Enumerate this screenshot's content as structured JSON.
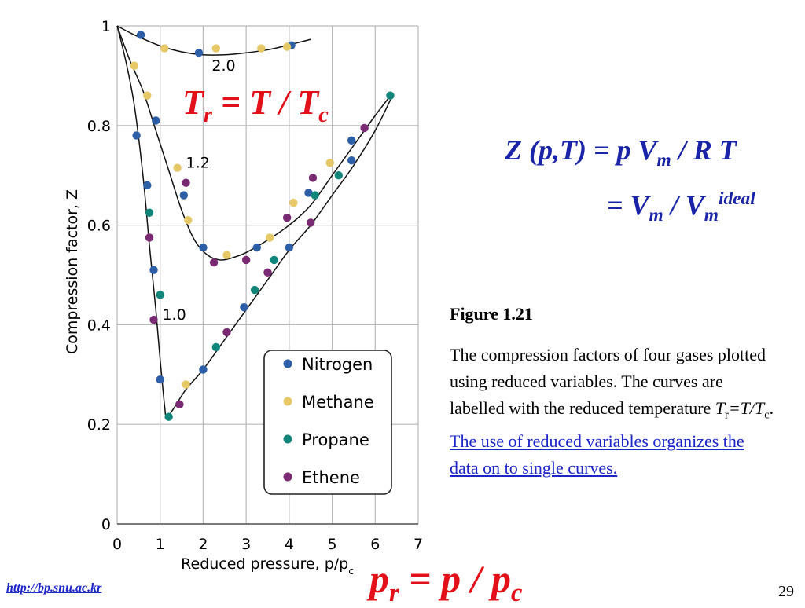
{
  "slide": {
    "tr_equation": {
      "a": "T",
      "a_sub": "r",
      "b": " = T / T",
      "b_sub": "c"
    },
    "pr_equation": {
      "a": "p",
      "a_sub": "r",
      "b": " = p / p",
      "b_sub": "c"
    },
    "z_line1": {
      "pre": "Z (",
      "p": "p",
      "mid": ",",
      "T": "T",
      "eq": ") = p V",
      "sub": "m",
      "post": " / R T"
    },
    "z_line2": {
      "pre": "= V",
      "sub1": "m",
      "mid": " / V",
      "sub2": "m",
      "sup": "ideal"
    },
    "figure_label": "Figure 1.21",
    "caption": {
      "text1": "The compression factors of four gases plotted using reduced variables.  The curves are labelled with the reduced temperature ",
      "T": "T",
      "r": "r",
      "eq": "=T/T",
      "c": "c",
      "dot": ".  ",
      "link": "The use of reduced variables organizes the data on to single curves."
    },
    "url": "http://bp.snu.ac.kr",
    "page_number": "29"
  },
  "colors": {
    "nitrogen": "#2d5ea8",
    "methane": "#e6c866",
    "propane": "#10857a",
    "ethene": "#7a2a72",
    "red": "#e3101a",
    "blue": "#1a24a8"
  },
  "chart_data": {
    "type": "scatter",
    "xlabel": "Reduced pressure, p/p",
    "xlabel_sub": "c",
    "ylabel": "Compression factor, Z",
    "xlim": [
      0,
      7
    ],
    "ylim": [
      0,
      1
    ],
    "x_ticks": [
      0,
      1,
      2,
      3,
      4,
      5,
      6,
      7
    ],
    "y_ticks": [
      {
        "v": 0,
        "label": "0"
      },
      {
        "v": 0.2,
        "label": "0.2"
      },
      {
        "v": 0.4,
        "label": "0.4"
      },
      {
        "v": 0.6,
        "label": "0.6"
      },
      {
        "v": 0.8,
        "label": "0.8"
      },
      {
        "v": 1,
        "label": "1"
      }
    ],
    "grid": true,
    "curve_labels": [
      {
        "text": "2.0",
        "x": 2.2,
        "y": 0.91
      },
      {
        "text": "1.2",
        "x": 1.6,
        "y": 0.715
      },
      {
        "text": "1.0",
        "x": 1.05,
        "y": 0.41
      }
    ],
    "curves": [
      {
        "Tr": "2.0",
        "points": [
          [
            0,
            1
          ],
          [
            0.4,
            0.982
          ],
          [
            1.0,
            0.96
          ],
          [
            1.5,
            0.948
          ],
          [
            2.0,
            0.942
          ],
          [
            2.5,
            0.942
          ],
          [
            3.0,
            0.946
          ],
          [
            3.5,
            0.952
          ],
          [
            4.0,
            0.962
          ],
          [
            4.5,
            0.973
          ]
        ]
      },
      {
        "Tr": "1.2",
        "points": [
          [
            0,
            1
          ],
          [
            0.3,
            0.93
          ],
          [
            0.6,
            0.87
          ],
          [
            0.9,
            0.79
          ],
          [
            1.2,
            0.71
          ],
          [
            1.5,
            0.63
          ],
          [
            1.8,
            0.57
          ],
          [
            2.1,
            0.54
          ],
          [
            2.4,
            0.53
          ],
          [
            2.7,
            0.535
          ],
          [
            3.0,
            0.545
          ],
          [
            3.5,
            0.57
          ],
          [
            4.0,
            0.6
          ],
          [
            4.5,
            0.64
          ],
          [
            5.0,
            0.7
          ],
          [
            5.5,
            0.76
          ],
          [
            6.0,
            0.82
          ],
          [
            6.4,
            0.865
          ]
        ]
      },
      {
        "Tr": "1.0",
        "points": [
          [
            0,
            1
          ],
          [
            0.2,
            0.93
          ],
          [
            0.4,
            0.84
          ],
          [
            0.6,
            0.7
          ],
          [
            0.75,
            0.56
          ],
          [
            0.9,
            0.43
          ],
          [
            1.0,
            0.33
          ],
          [
            1.1,
            0.24
          ],
          [
            1.15,
            0.215
          ],
          [
            1.3,
            0.23
          ],
          [
            1.6,
            0.27
          ],
          [
            2.0,
            0.31
          ],
          [
            2.5,
            0.37
          ],
          [
            3.0,
            0.43
          ],
          [
            3.5,
            0.49
          ],
          [
            4.0,
            0.55
          ],
          [
            4.5,
            0.6
          ],
          [
            5.0,
            0.66
          ],
          [
            5.5,
            0.72
          ],
          [
            6.0,
            0.79
          ],
          [
            6.4,
            0.86
          ]
        ]
      }
    ],
    "legend": {
      "position": "bottom-right",
      "entries": [
        "Nitrogen",
        "Methane",
        "Propane",
        "Ethene"
      ]
    },
    "series": [
      {
        "name": "Nitrogen",
        "color": "#2d5ea8",
        "points": [
          [
            0.55,
            0.982
          ],
          [
            1.9,
            0.946
          ],
          [
            4.05,
            0.961
          ],
          [
            0.9,
            0.81
          ],
          [
            1.55,
            0.66
          ],
          [
            2.0,
            0.555
          ],
          [
            3.25,
            0.555
          ],
          [
            4.0,
            0.555
          ],
          [
            4.45,
            0.665
          ],
          [
            0.45,
            0.78
          ],
          [
            0.7,
            0.68
          ],
          [
            0.85,
            0.51
          ],
          [
            1.0,
            0.29
          ],
          [
            2.0,
            0.31
          ],
          [
            2.95,
            0.435
          ],
          [
            5.45,
            0.77
          ],
          [
            5.45,
            0.73
          ]
        ]
      },
      {
        "Name": "",
        "name": "Methane",
        "color": "#e6c866",
        "points": [
          [
            1.1,
            0.955
          ],
          [
            2.3,
            0.955
          ],
          [
            3.35,
            0.955
          ],
          [
            3.95,
            0.958
          ],
          [
            0.4,
            0.92
          ],
          [
            0.7,
            0.86
          ],
          [
            1.4,
            0.715
          ],
          [
            1.65,
            0.61
          ],
          [
            2.55,
            0.54
          ],
          [
            3.55,
            0.575
          ],
          [
            4.1,
            0.645
          ],
          [
            4.95,
            0.725
          ],
          [
            1.6,
            0.28
          ]
        ]
      },
      {
        "name": "Propane",
        "color": "#10857a",
        "points": [
          [
            1.2,
            0.215
          ],
          [
            2.3,
            0.355
          ],
          [
            3.2,
            0.47
          ],
          [
            3.65,
            0.53
          ],
          [
            4.6,
            0.66
          ],
          [
            5.15,
            0.7
          ],
          [
            6.35,
            0.86
          ],
          [
            0.75,
            0.625
          ],
          [
            1.0,
            0.46
          ]
        ]
      },
      {
        "name": "Ethene",
        "color": "#7a2a72",
        "points": [
          [
            0.75,
            0.575
          ],
          [
            0.85,
            0.41
          ],
          [
            1.45,
            0.24
          ],
          [
            2.55,
            0.385
          ],
          [
            1.6,
            0.685
          ],
          [
            2.25,
            0.525
          ],
          [
            3.0,
            0.53
          ],
          [
            3.5,
            0.505
          ],
          [
            3.95,
            0.615
          ],
          [
            4.5,
            0.605
          ],
          [
            4.55,
            0.695
          ],
          [
            5.75,
            0.795
          ]
        ]
      }
    ]
  }
}
